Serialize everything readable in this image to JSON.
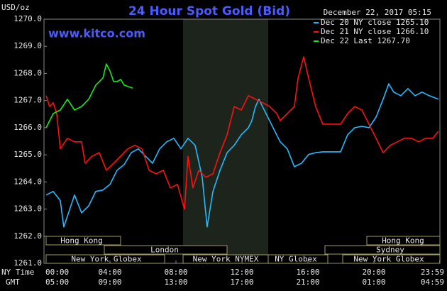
{
  "chart_data": {
    "type": "line",
    "title": "24 Hour Spot Gold (Bid)",
    "subtitle": "December 22, 2017 05:15",
    "watermark": "www.kitco.com",
    "y_label": "USD/oz",
    "x_label": "NY Time",
    "x2_label": "GMT",
    "xlim": [
      0,
      24
    ],
    "xticks": [
      {
        "value": 0,
        "label": "00:00"
      },
      {
        "value": 4,
        "label": "04:00"
      },
      {
        "value": 8,
        "label": "08:00"
      },
      {
        "value": 12,
        "label": "12:00"
      },
      {
        "value": 16,
        "label": "16:00"
      },
      {
        "value": 20,
        "label": "20:00"
      },
      {
        "value": 23.98,
        "label": "23:59"
      }
    ],
    "x2tick_labels": [
      "05:00",
      "09:00",
      "13:00",
      "17:00",
      "21:00",
      "01:00",
      "04:59"
    ],
    "ylim": [
      1261,
      1270
    ],
    "yticks": [
      {
        "value": 1261,
        "label": "1261.0"
      },
      {
        "value": 1262,
        "label": "1262.0"
      },
      {
        "value": 1263,
        "label": "1263.0"
      },
      {
        "value": 1264,
        "label": "1264.0"
      },
      {
        "value": 1265,
        "label": "1265.0"
      },
      {
        "value": 1266,
        "label": "1266.0"
      },
      {
        "value": 1267,
        "label": "1267.0"
      },
      {
        "value": 1268,
        "label": "1268.0"
      },
      {
        "value": 1269,
        "label": "1269.0"
      },
      {
        "value": 1270,
        "label": "1270.0"
      }
    ],
    "sessions": [
      "Hong Kong",
      "London",
      "New York Globex",
      "New York NYMEX",
      "NY Globex",
      "Hong Kong",
      "Sydney",
      "New York Globex"
    ],
    "series": [
      {
        "name": "Dec 20 NY close 1265.10",
        "color": "#22bbff",
        "x": [
          0.13,
          0.56,
          0.99,
          1.2,
          1.63,
          1.85,
          2.28,
          2.71,
          3.14,
          3.57,
          4.0,
          4.43,
          4.86,
          5.29,
          5.72,
          6.15,
          6.58,
          7.01,
          7.44,
          7.87,
          8.3,
          8.73,
          9.16,
          9.59,
          9.89,
          10.24,
          10.67,
          11.1,
          11.53,
          11.96,
          12.39,
          12.6,
          12.82,
          13.03,
          13.46,
          13.89,
          14.32,
          14.75,
          15.18,
          15.61,
          16.04,
          16.47,
          16.9,
          17.98,
          18.41,
          18.84,
          19.27,
          19.7,
          20.13,
          20.56,
          20.9,
          21.2,
          21.63,
          22.06,
          22.49,
          22.92,
          23.35,
          23.91
        ],
        "values": [
          1263.52,
          1263.65,
          1263.31,
          1262.34,
          1263.12,
          1263.52,
          1262.86,
          1263.12,
          1263.65,
          1263.7,
          1263.91,
          1264.43,
          1264.64,
          1265.08,
          1265.22,
          1264.95,
          1264.69,
          1265.22,
          1265.48,
          1265.61,
          1265.22,
          1265.61,
          1265.35,
          1264.17,
          1262.34,
          1263.65,
          1264.43,
          1265.08,
          1265.35,
          1265.74,
          1266.0,
          1266.26,
          1266.78,
          1267.05,
          1266.52,
          1266.0,
          1265.48,
          1265.22,
          1264.56,
          1264.69,
          1265.01,
          1265.08,
          1265.11,
          1265.11,
          1265.74,
          1266.0,
          1266.05,
          1266.0,
          1266.39,
          1267.05,
          1267.62,
          1267.31,
          1267.18,
          1267.44,
          1267.18,
          1267.31,
          1267.18,
          1267.05
        ]
      },
      {
        "name": "Dec 21 NY close 1266.10",
        "color": "#ff1010",
        "x": [
          0.13,
          0.34,
          0.56,
          0.77,
          0.99,
          1.42,
          1.85,
          2.28,
          2.49,
          2.92,
          3.35,
          3.78,
          4.22,
          4.65,
          5.08,
          5.51,
          5.94,
          6.37,
          6.8,
          7.23,
          7.66,
          8.09,
          8.52,
          8.73,
          9.03,
          9.38,
          9.81,
          10.24,
          10.67,
          11.1,
          11.53,
          11.96,
          12.39,
          12.82,
          13.25,
          13.68,
          14.11,
          14.32,
          14.75,
          15.18,
          15.4,
          15.74,
          16.04,
          16.47,
          16.9,
          17.33,
          17.98,
          18.41,
          18.84,
          19.27,
          19.7,
          20.13,
          20.56,
          20.99,
          21.42,
          21.85,
          22.28,
          22.71,
          23.14,
          23.57,
          23.91
        ],
        "values": [
          1267.18,
          1266.78,
          1266.92,
          1266.52,
          1265.22,
          1265.61,
          1265.48,
          1265.48,
          1264.69,
          1264.95,
          1265.08,
          1264.43,
          1264.69,
          1264.95,
          1265.22,
          1265.35,
          1265.22,
          1264.43,
          1264.3,
          1264.43,
          1263.78,
          1263.91,
          1262.99,
          1264.95,
          1263.78,
          1264.43,
          1264.17,
          1264.3,
          1265.08,
          1265.74,
          1266.78,
          1266.65,
          1267.18,
          1267.05,
          1266.92,
          1266.78,
          1266.52,
          1266.26,
          1266.52,
          1266.78,
          1267.83,
          1268.61,
          1267.83,
          1266.78,
          1266.13,
          1266.13,
          1266.13,
          1266.52,
          1266.78,
          1266.65,
          1266.13,
          1265.61,
          1265.08,
          1265.35,
          1265.48,
          1265.61,
          1265.61,
          1265.48,
          1265.61,
          1265.61,
          1265.87
        ]
      },
      {
        "name": "Dec 22 Last 1267.70",
        "color": "#11ee11",
        "x": [
          0.13,
          0.56,
          0.99,
          1.42,
          1.85,
          2.28,
          2.71,
          3.14,
          3.57,
          3.78,
          4.0,
          4.22,
          4.43,
          4.65,
          4.86,
          5.08,
          5.38
        ],
        "values": [
          1266.0,
          1266.52,
          1266.65,
          1267.05,
          1266.65,
          1266.78,
          1267.05,
          1267.57,
          1267.83,
          1268.35,
          1268.09,
          1267.7,
          1267.7,
          1267.78,
          1267.57,
          1267.52,
          1267.46
        ]
      }
    ]
  }
}
